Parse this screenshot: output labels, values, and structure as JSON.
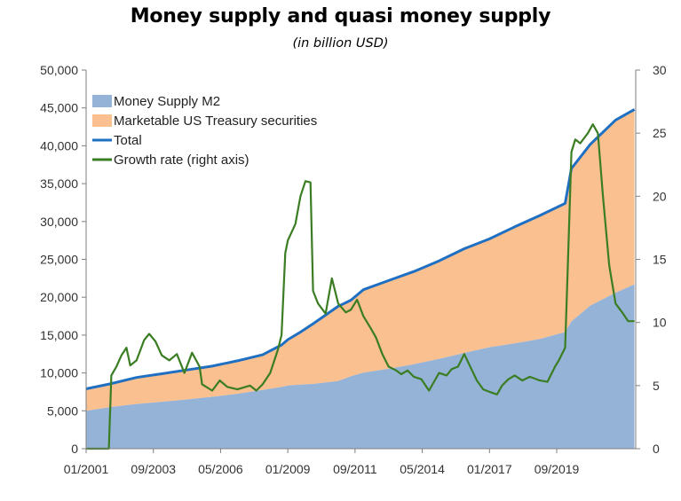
{
  "chart_data": {
    "type": "area",
    "title": "Money supply and quasi money supply",
    "subtitle": "(in billion USD)",
    "ylim_left": [
      0,
      50000
    ],
    "ylim_right": [
      0,
      30
    ],
    "left_ticks": [
      "0",
      "5,000",
      "10,000",
      "15,000",
      "20,000",
      "25,000",
      "30,000",
      "35,000",
      "40,000",
      "45,000",
      "50,000"
    ],
    "right_ticks": [
      "0",
      "5",
      "10",
      "15",
      "20",
      "25",
      "30"
    ],
    "x_ticks": [
      "01/2001",
      "09/2003",
      "05/2006",
      "01/2009",
      "09/2011",
      "05/2014",
      "01/2017",
      "09/2019"
    ],
    "grid": false,
    "legend_position": "top-left",
    "colors": {
      "m2": "#95b3d7",
      "treasury": "#fac090",
      "total": "#1f6fc2",
      "growth": "#3a7d22"
    },
    "series": [
      {
        "name": "Money Supply M2",
        "kind": "stacked-area",
        "x": [
          2001.0,
          2002.0,
          2003.0,
          2004.0,
          2005.0,
          2006.0,
          2007.0,
          2008.0,
          2008.75,
          2009.0,
          2009.5,
          2010.0,
          2011.0,
          2011.5,
          2012.0,
          2013.0,
          2014.0,
          2015.0,
          2016.0,
          2017.0,
          2018.0,
          2019.0,
          2020.0,
          2020.25,
          2021.0,
          2022.0,
          2022.75
        ],
        "values": [
          5000,
          5500,
          5900,
          6200,
          6500,
          6850,
          7250,
          7750,
          8150,
          8350,
          8450,
          8550,
          8950,
          9550,
          10050,
          10550,
          11150,
          11850,
          12650,
          13400,
          13900,
          14500,
          15400,
          16800,
          18900,
          20600,
          21700
        ]
      },
      {
        "name": "Marketable US Treasury securities",
        "kind": "stacked-area",
        "x": [
          2001.0,
          2002.0,
          2003.0,
          2004.0,
          2005.0,
          2006.0,
          2007.0,
          2008.0,
          2008.75,
          2009.0,
          2009.5,
          2010.0,
          2011.0,
          2011.5,
          2012.0,
          2013.0,
          2014.0,
          2015.0,
          2016.0,
          2017.0,
          2018.0,
          2019.0,
          2020.0,
          2020.25,
          2021.0,
          2022.0,
          2022.75
        ],
        "values": [
          2900,
          3100,
          3500,
          3700,
          3900,
          4050,
          4350,
          4650,
          5550,
          6050,
          6950,
          7950,
          9850,
          10050,
          10950,
          11650,
          12250,
          12950,
          13750,
          14300,
          15400,
          16300,
          17000,
          20200,
          21300,
          22800,
          23100
        ]
      },
      {
        "name": "Total",
        "kind": "line",
        "x": [
          2001.0,
          2002.0,
          2003.0,
          2004.0,
          2005.0,
          2006.0,
          2007.0,
          2008.0,
          2008.75,
          2009.0,
          2009.5,
          2010.0,
          2011.0,
          2011.5,
          2012.0,
          2013.0,
          2014.0,
          2015.0,
          2016.0,
          2017.0,
          2018.0,
          2019.0,
          2020.0,
          2020.25,
          2021.0,
          2022.0,
          2022.75
        ],
        "values": [
          7900,
          8600,
          9400,
          9900,
          10400,
          10900,
          11600,
          12400,
          13700,
          14400,
          15400,
          16500,
          18800,
          19600,
          21000,
          22200,
          23400,
          24800,
          26400,
          27700,
          29300,
          30800,
          32400,
          37000,
          40200,
          43400,
          44800
        ]
      },
      {
        "name": "Growth rate (right axis)",
        "kind": "line",
        "axis": "right",
        "x": [
          2001.0,
          2001.9,
          2002.0,
          2002.2,
          2002.4,
          2002.6,
          2002.75,
          2003.0,
          2003.3,
          2003.5,
          2003.75,
          2004.0,
          2004.3,
          2004.6,
          2004.9,
          2005.2,
          2005.5,
          2005.6,
          2006.0,
          2006.3,
          2006.6,
          2007.0,
          2007.5,
          2007.75,
          2008.0,
          2008.3,
          2008.6,
          2008.75,
          2008.9,
          2009.0,
          2009.3,
          2009.5,
          2009.7,
          2009.9,
          2010.0,
          2010.2,
          2010.5,
          2010.75,
          2011.0,
          2011.3,
          2011.5,
          2011.75,
          2012.0,
          2012.3,
          2012.5,
          2012.75,
          2013.0,
          2013.3,
          2013.5,
          2013.75,
          2014.0,
          2014.3,
          2014.6,
          2015.0,
          2015.3,
          2015.5,
          2015.75,
          2016.0,
          2016.5,
          2016.75,
          2017.0,
          2017.3,
          2017.5,
          2017.75,
          2018.0,
          2018.3,
          2018.6,
          2019.0,
          2019.3,
          2019.6,
          2019.75,
          2020.0,
          2020.1,
          2020.25,
          2020.4,
          2020.6,
          2020.9,
          2021.1,
          2021.3,
          2021.5,
          2021.75,
          2022.0,
          2022.3,
          2022.5,
          2022.75
        ],
        "values": [
          0,
          0,
          5.8,
          6.5,
          7.4,
          8.0,
          6.6,
          7.0,
          8.6,
          9.1,
          8.5,
          7.4,
          7.0,
          7.5,
          6.0,
          7.6,
          6.5,
          5.1,
          4.6,
          5.4,
          4.9,
          4.7,
          5.0,
          4.6,
          5.1,
          6.0,
          7.8,
          9.0,
          15.5,
          16.5,
          17.8,
          20.0,
          21.2,
          21.1,
          12.5,
          11.5,
          10.7,
          13.5,
          11.5,
          10.8,
          11.0,
          11.8,
          10.5,
          9.5,
          8.8,
          7.5,
          6.5,
          6.2,
          5.9,
          6.2,
          5.7,
          5.5,
          4.6,
          6.0,
          5.8,
          6.3,
          6.5,
          7.5,
          5.4,
          4.7,
          4.5,
          4.3,
          5.0,
          5.5,
          5.8,
          5.4,
          5.7,
          5.4,
          5.3,
          6.5,
          7.0,
          8.0,
          14.0,
          23.5,
          24.5,
          24.2,
          25.0,
          25.7,
          25.0,
          20.0,
          14.5,
          11.5,
          10.7,
          10.1,
          10.1
        ]
      }
    ]
  }
}
